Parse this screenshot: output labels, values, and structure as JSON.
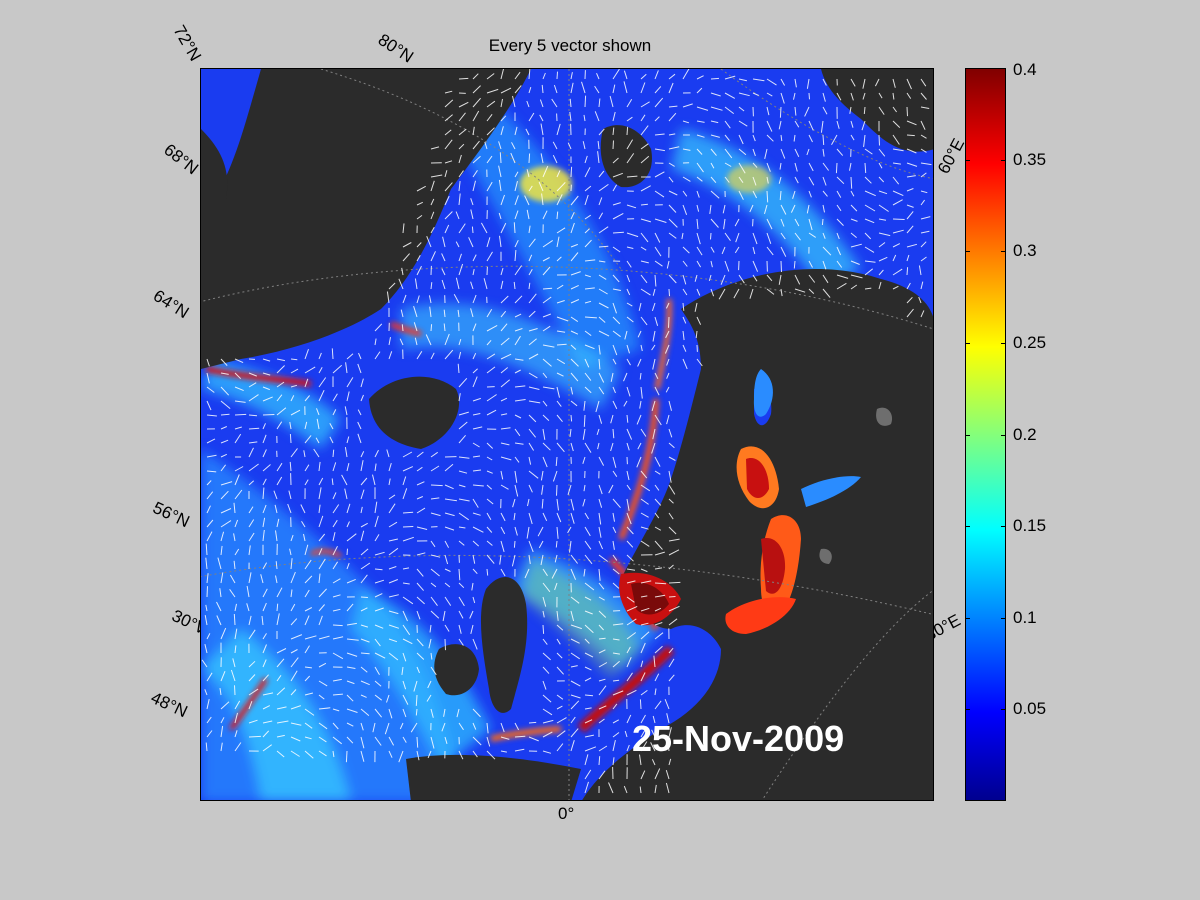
{
  "title": "Every 5 vector shown",
  "date": "25-Nov-2009",
  "lat_labels": [
    "72°N",
    "68°N",
    "64°N",
    "56°N",
    "30°W",
    "48°N"
  ],
  "lon_labels": [
    "80°N",
    "60°E",
    "30°E",
    "0°"
  ],
  "colorbar": {
    "colormap": "jet",
    "min": 0,
    "max": 0.4,
    "ticks": [
      "0.4",
      "0.35",
      "0.3",
      "0.25",
      "0.2",
      "0.15",
      "0.1",
      "0.05"
    ],
    "tick_values": [
      0.4,
      0.35,
      0.3,
      0.25,
      0.2,
      0.15,
      0.1,
      0.05
    ]
  },
  "colors": {
    "land": "#2b2b2b",
    "background": "#c8c8c8",
    "vectors": "#ffffff"
  }
}
